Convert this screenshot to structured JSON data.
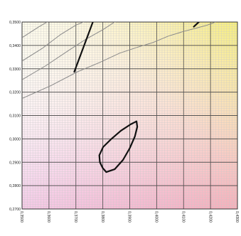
{
  "chart_data": {
    "type": "line",
    "title": "",
    "xlabel": "",
    "ylabel": "",
    "grid": true,
    "xlim": [
      0.35,
      0.43
    ],
    "ylim": [
      0.27,
      0.35
    ],
    "xticks": [
      "0,3500",
      "0,3600",
      "0,3700",
      "0,3800",
      "0,3900",
      "0,4000",
      "0,4100",
      "0,4200",
      "0,4300"
    ],
    "yticks": [
      "0,2700",
      "0,2800",
      "0,2900",
      "0,3000",
      "0,3100",
      "0,3200",
      "0,3300",
      "0,3400",
      "0,3500"
    ],
    "series": [
      {
        "style": "thin-gray",
        "x": [
          0.35,
          0.3606,
          0.3706,
          0.3788,
          0.3863,
          0.3931,
          0.3988,
          0.4044,
          0.41,
          0.4144,
          0.4188,
          0.4219
        ],
        "y": [
          0.3173,
          0.3227,
          0.3287,
          0.3327,
          0.3367,
          0.3393,
          0.3413,
          0.344,
          0.346,
          0.3473,
          0.3487,
          0.35
        ]
      },
      {
        "style": "thin-gray",
        "x": [
          0.35,
          0.3588,
          0.3675,
          0.3738,
          0.38,
          0.3844,
          0.3888
        ],
        "y": [
          0.3253,
          0.3313,
          0.338,
          0.3427,
          0.3467,
          0.35,
          0.3513
        ]
      },
      {
        "style": "thin-gray",
        "x": [
          0.35,
          0.3575,
          0.3644,
          0.37,
          0.3756
        ],
        "y": [
          0.3333,
          0.3387,
          0.3447,
          0.3487,
          0.3513
        ]
      },
      {
        "style": "thin-gray",
        "x": [
          0.35,
          0.3563,
          0.3613
        ],
        "y": [
          0.3433,
          0.348,
          0.3513
        ]
      },
      {
        "style": "thick-black",
        "x": [
          0.3694,
          0.3763
        ],
        "y": [
          0.3287,
          0.35
        ]
      },
      {
        "style": "thick-black",
        "x": [
          0.4138,
          0.4175
        ],
        "y": [
          0.348,
          0.352
        ]
      },
      {
        "style": "thick-black-closed",
        "x": [
          0.38,
          0.3789,
          0.3787,
          0.3801,
          0.3832,
          0.3867,
          0.3903,
          0.3925,
          0.3928,
          0.3919,
          0.39,
          0.3875,
          0.3844,
          0.3813,
          0.38
        ],
        "y": [
          0.2875,
          0.29,
          0.293,
          0.2965,
          0.3,
          0.3035,
          0.3062,
          0.3075,
          0.3052,
          0.301,
          0.296,
          0.291,
          0.287,
          0.2858,
          0.2875
        ]
      }
    ]
  }
}
